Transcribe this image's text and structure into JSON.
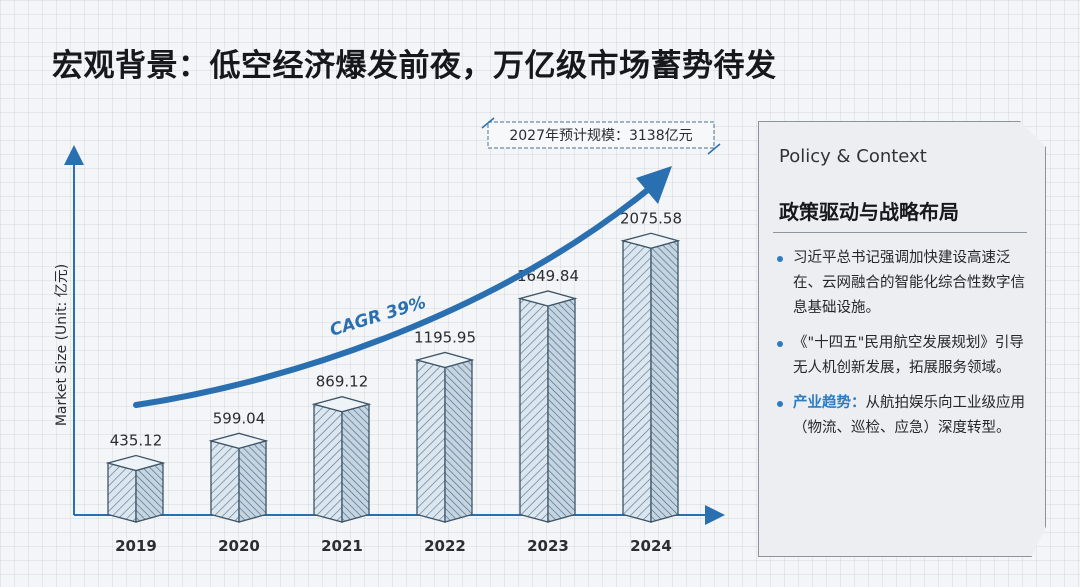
{
  "title": "宏观背景：低空经济爆发前夜，万亿级市场蓄势待发",
  "chart_data": {
    "type": "bar",
    "categories": [
      "2019",
      "2020",
      "2021",
      "2022",
      "2023",
      "2024"
    ],
    "values": [
      435.12,
      599.04,
      869.12,
      1195.95,
      1649.84,
      2075.58
    ],
    "value_labels": [
      "435.12",
      "599.04",
      "869.12",
      "1195.95",
      "1649.84",
      "2075.58"
    ],
    "title": "",
    "xlabel": "",
    "ylabel": "Market Size (Unit: 亿元)",
    "ylim": [
      0,
      2500
    ],
    "grid": false,
    "annotations": {
      "cagr": "CAGR 39%",
      "forecast_callout": "2027年预计规模：3138亿元"
    },
    "colors": {
      "bar_front": "#dbe6ef",
      "bar_hatch": "#5a7890",
      "bar_edge": "#3e5568",
      "arrow": "#2a6fb0"
    }
  },
  "panel": {
    "subtitle_en": "Policy & Context",
    "heading": "政策驱动与战略布局",
    "items": [
      {
        "lead": "",
        "text": "习近平总书记强调加快建设高速泛在、云网融合的智能化综合性数字信息基础设施。"
      },
      {
        "lead": "",
        "text": "《\"十四五\"民用航空发展规划》引导无人机创新发展，拓展服务领域。"
      },
      {
        "lead": "产业趋势：",
        "text": "从航拍娱乐向工业级应用（物流、巡检、应急）深度转型。"
      }
    ],
    "bullet_color": "#2f7bc0"
  }
}
